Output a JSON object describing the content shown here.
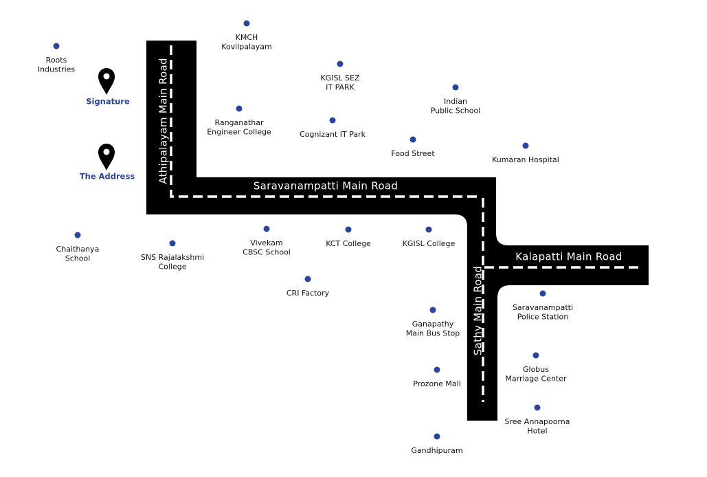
{
  "roads": [
    "Athipalayam Main Road",
    "Saravanampatti Main Road",
    "Kalapatti Main Road",
    "Sathy Main Road"
  ],
  "highlights": [
    "Signature",
    "The Address"
  ],
  "places": [
    [
      "KMCH",
      "Kovilpalayam"
    ],
    [
      "Roots",
      "Industries"
    ],
    [
      "KGISL SEZ",
      "IT PARK"
    ],
    [
      "Indian",
      "Public School"
    ],
    [
      "Ranganathar",
      "Engineer College"
    ],
    [
      "Cognizant IT Park"
    ],
    [
      "Food Street"
    ],
    [
      "Kumaran Hospital"
    ],
    [
      "Chaithanya",
      "School"
    ],
    [
      "SNS Rajalakshmi",
      "College"
    ],
    [
      "Vivekam",
      "CBSC School"
    ],
    [
      "KCT College"
    ],
    [
      "KGISL College"
    ],
    [
      "CRI Factory"
    ],
    [
      "Saravanampatti",
      "Police Station"
    ],
    [
      "Ganapathy",
      "Main Bus Stop"
    ],
    [
      "Globus",
      "Marriage Center"
    ],
    [
      "Prozone Mall"
    ],
    [
      "Sree Annapoorna",
      "Hotel"
    ],
    [
      "Gandhipuram"
    ]
  ]
}
